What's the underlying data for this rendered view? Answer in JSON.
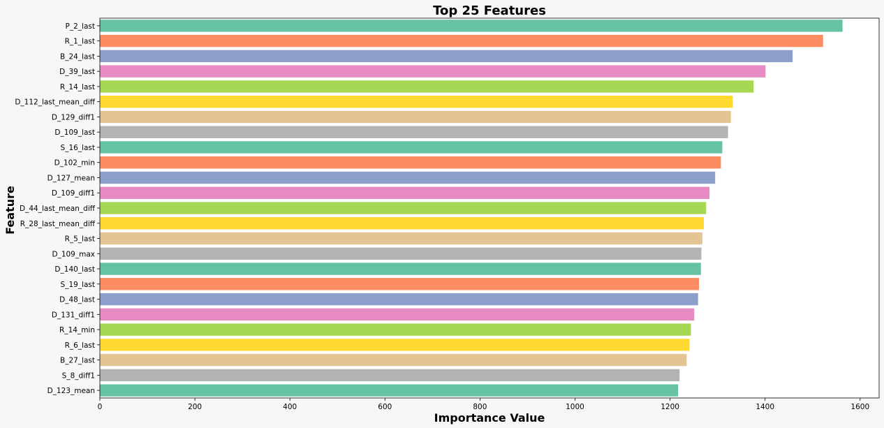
{
  "chart_data": {
    "type": "bar",
    "orientation": "horizontal",
    "title": "Top 25 Features",
    "xlabel": "Importance Value",
    "ylabel": "Feature",
    "xlim": [
      0,
      1640
    ],
    "xticks": [
      0,
      200,
      400,
      600,
      800,
      1000,
      1200,
      1400,
      1600
    ],
    "grid": false,
    "categories": [
      "P_2_last",
      "R_1_last",
      "B_24_last",
      "D_39_last",
      "R_14_last",
      "D_112_last_mean_diff",
      "D_129_diff1",
      "D_109_last",
      "S_16_last",
      "D_102_min",
      "D_127_mean",
      "D_109_diff1",
      "D_44_last_mean_diff",
      "R_28_last_mean_diff",
      "R_5_last",
      "D_109_max",
      "D_140_last",
      "S_19_last",
      "D_48_last",
      "D_131_diff1",
      "R_14_min",
      "R_6_last",
      "B_27_last",
      "S_8_diff1",
      "D_123_mean"
    ],
    "values": [
      1563,
      1522,
      1458,
      1401,
      1376,
      1332,
      1328,
      1322,
      1310,
      1307,
      1295,
      1283,
      1276,
      1271,
      1268,
      1266,
      1265,
      1261,
      1259,
      1251,
      1244,
      1241,
      1235,
      1220,
      1217
    ],
    "palette": [
      "#66c2a5",
      "#fc8d62",
      "#8da0cb",
      "#e78ac3",
      "#a6d854",
      "#ffd92f",
      "#e5c494",
      "#b3b3b3"
    ]
  }
}
